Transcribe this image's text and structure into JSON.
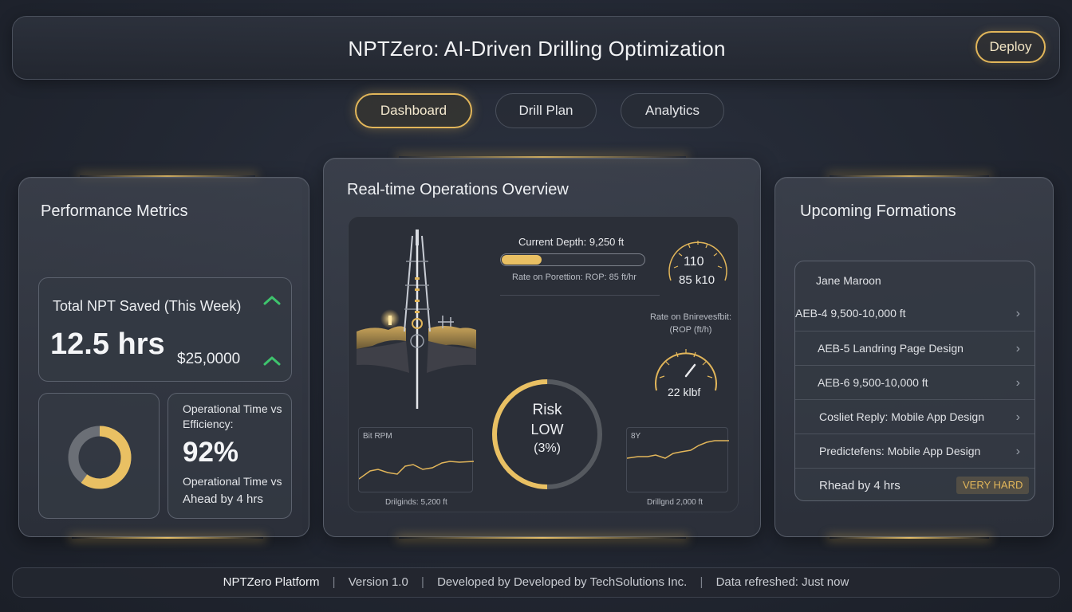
{
  "header": {
    "title": "NPTZero: AI-Driven Drilling Optimization",
    "deploy_label": "Deploy"
  },
  "tabs": [
    {
      "label": "Dashboard",
      "active": true
    },
    {
      "label": "Drill Plan",
      "active": false
    },
    {
      "label": "Analytics",
      "active": false
    }
  ],
  "performance": {
    "title": "Performance Metrics",
    "npt_card": {
      "label": "Total NPT Saved (This Week)",
      "value": "12.5 hrs",
      "savings": "$25,0000"
    },
    "donut": {
      "fraction": 0.6
    },
    "efficiency_card": {
      "label": "Operational Time vs Efficiency:",
      "value": "92%",
      "sub_label": "Operational Time vs",
      "ahead": "Ahead by 4 hrs"
    }
  },
  "operations": {
    "title": "Real-time Operations Overview",
    "current_depth": "Current Depth: 9,250 ft",
    "depth_progress": 0.28,
    "rop_caption": "Rate on Porettion: ROP: 85 ft/hr",
    "gauge1": {
      "line1": "110",
      "line2": "85 k10",
      "level": 0.55
    },
    "rate_caption_line1": "Rate on Bnirevesfbit:",
    "rate_caption_line2": "(ROP (ft/h)",
    "gauge2": {
      "line1": "22 klbf",
      "level": 0.6
    },
    "risk": {
      "line1": "Risk",
      "line2": "LOW",
      "line3": "(3%)",
      "fraction": 0.5
    },
    "chart_left": {
      "title": "Bit RPM",
      "caption": "Drilginds: 5,200 ft"
    },
    "chart_right": {
      "title": "8Y",
      "caption": "Drillgnd   2,000 ft"
    }
  },
  "formations": {
    "title": "Upcoming Formations",
    "header_item": "Jane Maroon",
    "items": [
      "AEB-4  9,500-10,000 ft",
      "AEB-5  Landring Page Design",
      "AEB-6  9,500-10,000 ft",
      "Cosliet Reply: Mobile App Design",
      "Predictefens: Mobile App Design"
    ],
    "last_row": {
      "label": "Rhead by 4 hrs",
      "badge": "VERY HARD"
    }
  },
  "footer": {
    "brand": "NPTZero",
    "brand_suffix": " Platform",
    "version": "Version 1.0",
    "developer": "Developed by Developed by TechSolutions Inc.",
    "refreshed": "Data refreshed: Just now"
  },
  "colors": {
    "accent": "#e2b65a",
    "success": "#3ec46d",
    "background": "#222732"
  }
}
